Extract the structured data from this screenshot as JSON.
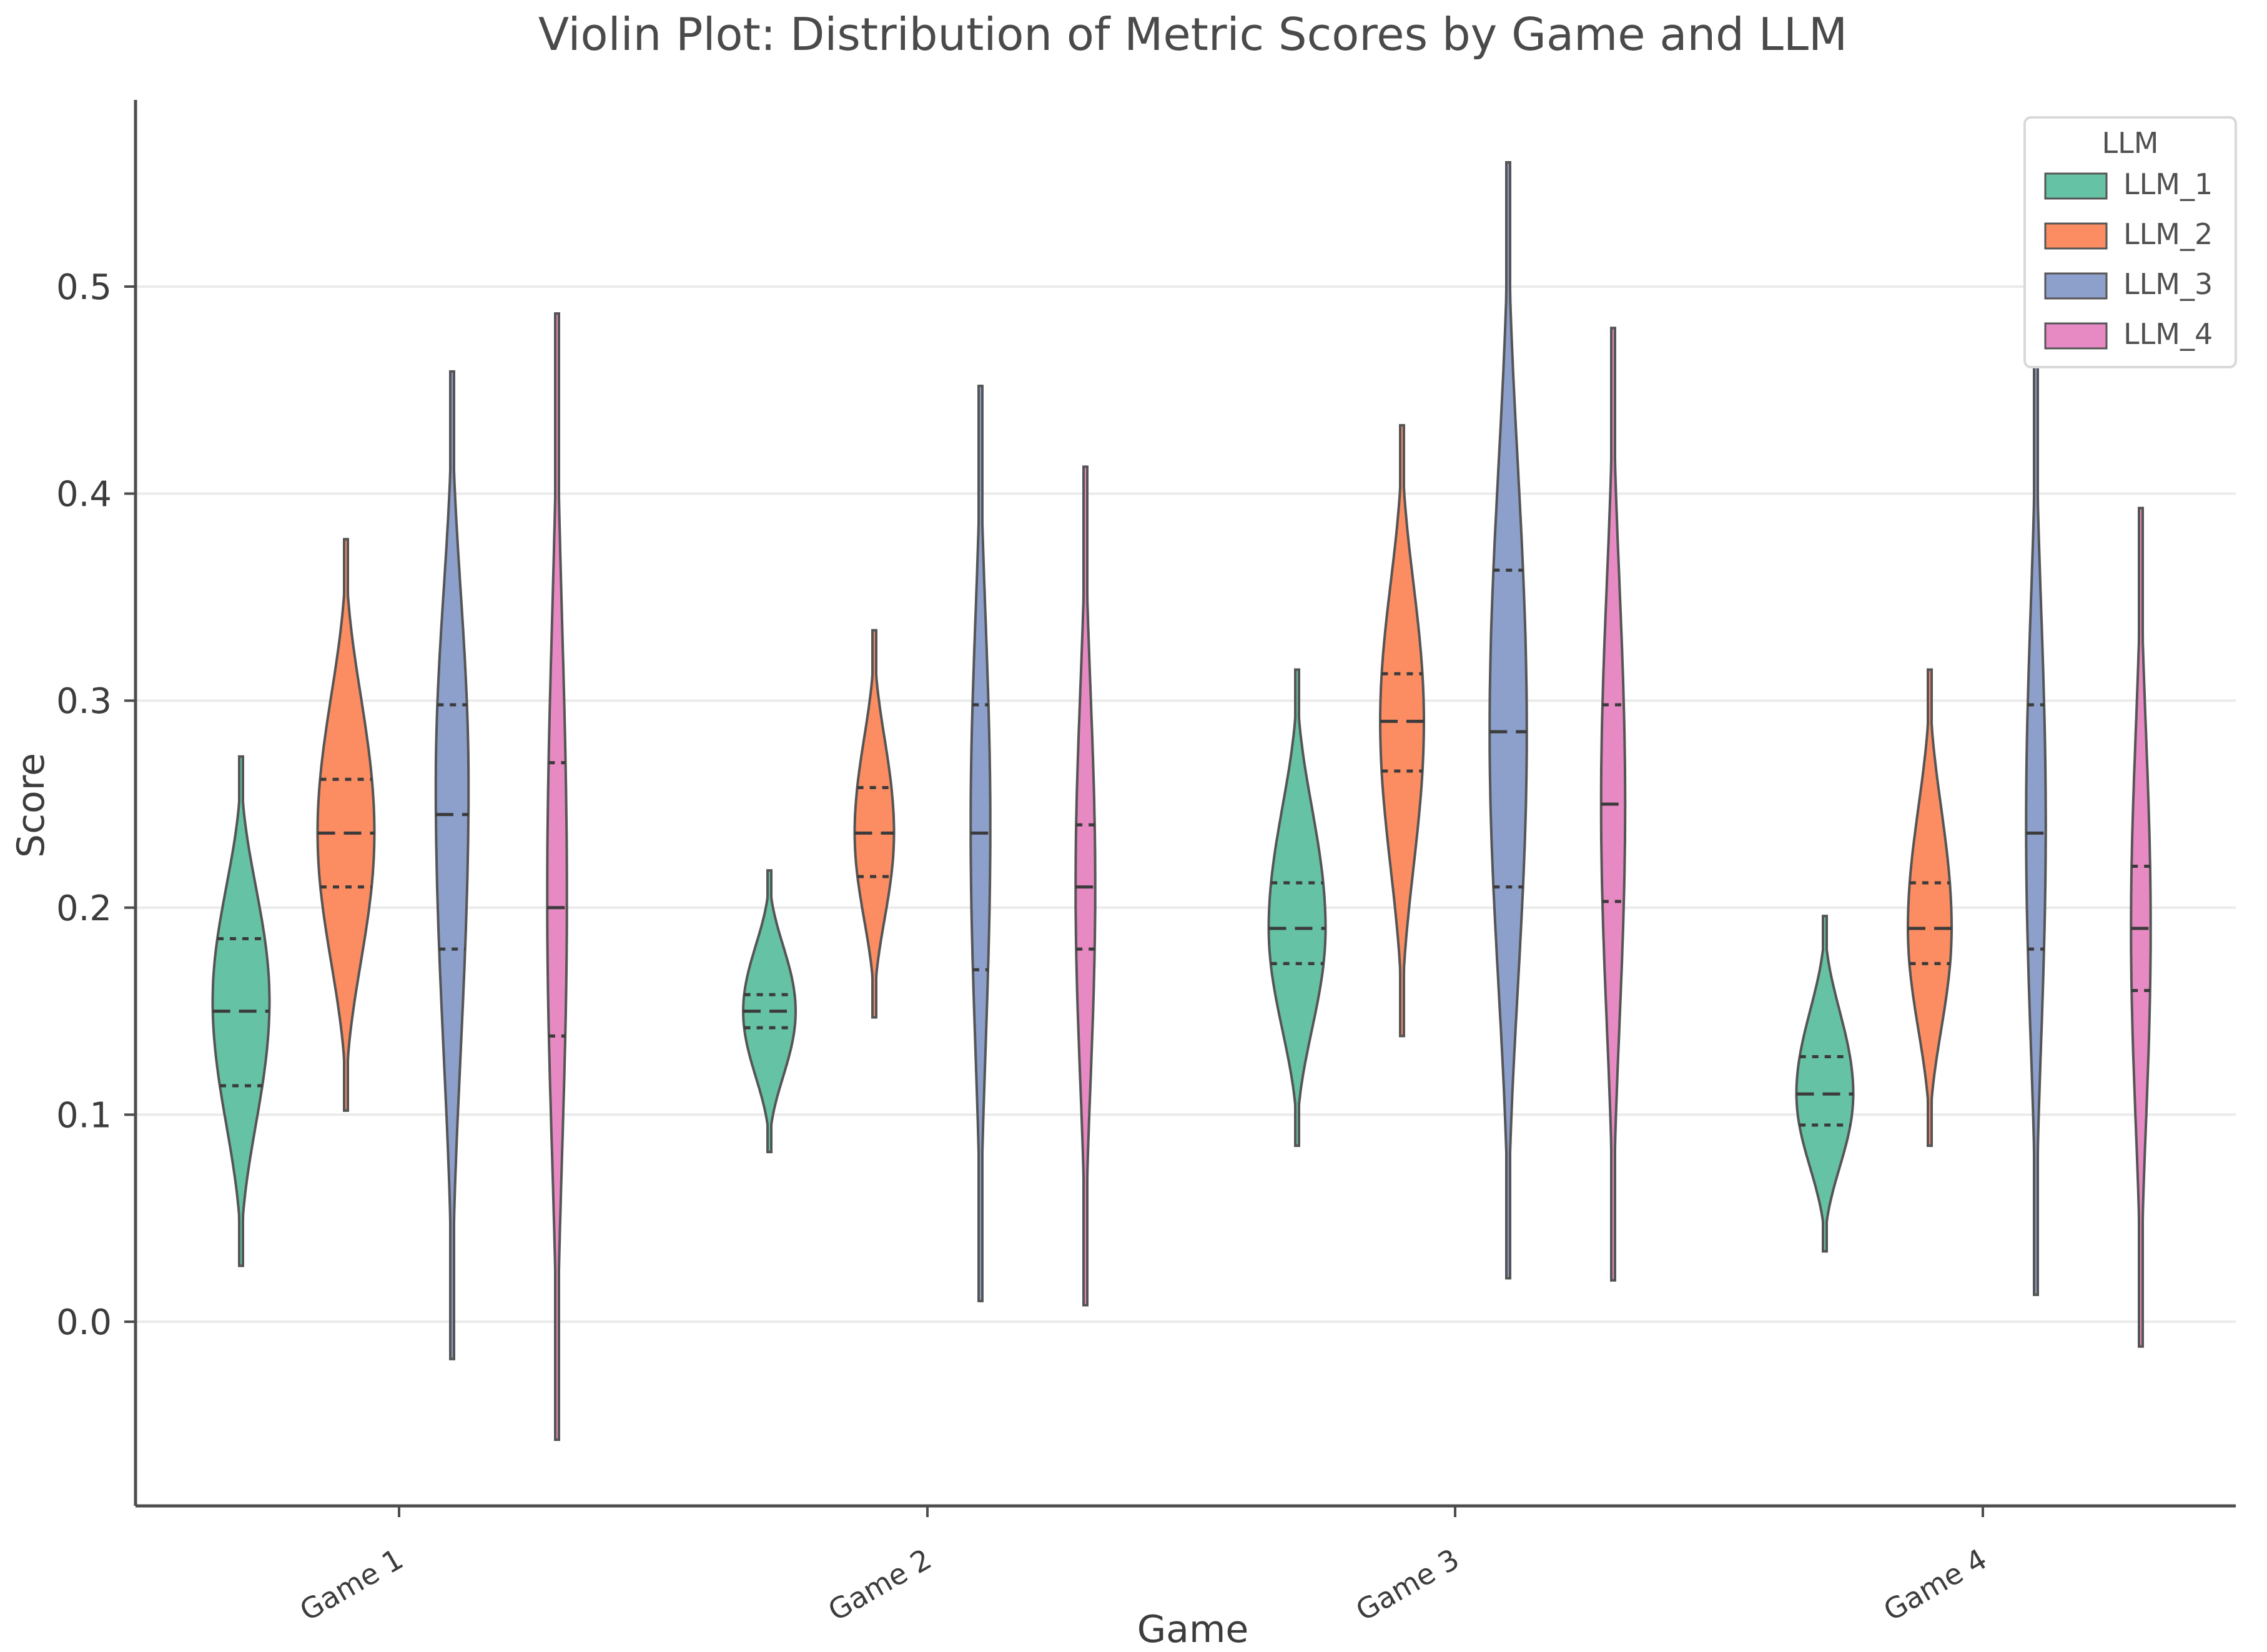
{
  "chart_data": {
    "type": "violin",
    "title": "Violin Plot: Distribution of Metric Scores by Game and LLM",
    "xlabel": "Game",
    "ylabel": "Score",
    "ylim": [
      -0.085,
      0.59
    ],
    "yticks": [
      0.0,
      0.1,
      0.2,
      0.3,
      0.4,
      0.5
    ],
    "ytick_labels": [
      "0.0",
      "0.1",
      "0.2",
      "0.3",
      "0.4",
      "0.5"
    ],
    "grid": "horizontal",
    "categories": [
      "Game 1",
      "Game 2",
      "Game 3",
      "Game 4"
    ],
    "legend": {
      "title": "LLM",
      "position": "top-right"
    },
    "series": [
      {
        "name": "LLM_1",
        "color": "#66c2a5",
        "violins": [
          {
            "min": 0.027,
            "max": 0.273,
            "q1": 0.114,
            "median": 0.15,
            "q3": 0.185,
            "peak": 0.155,
            "halfwidth": 0.13
          },
          {
            "min": 0.082,
            "max": 0.218,
            "q1": 0.142,
            "median": 0.15,
            "q3": 0.158,
            "peak": 0.15,
            "halfwidth": 0.12
          },
          {
            "min": 0.085,
            "max": 0.315,
            "q1": 0.173,
            "median": 0.19,
            "q3": 0.212,
            "peak": 0.19,
            "halfwidth": 0.13
          },
          {
            "min": 0.034,
            "max": 0.196,
            "q1": 0.095,
            "median": 0.11,
            "q3": 0.128,
            "peak": 0.11,
            "halfwidth": 0.13
          }
        ]
      },
      {
        "name": "LLM_2",
        "color": "#fc8d62",
        "violins": [
          {
            "min": 0.102,
            "max": 0.378,
            "q1": 0.21,
            "median": 0.236,
            "q3": 0.262,
            "peak": 0.236,
            "halfwidth": 0.13
          },
          {
            "min": 0.147,
            "max": 0.334,
            "q1": 0.215,
            "median": 0.236,
            "q3": 0.258,
            "peak": 0.236,
            "halfwidth": 0.09
          },
          {
            "min": 0.138,
            "max": 0.433,
            "q1": 0.266,
            "median": 0.29,
            "q3": 0.313,
            "peak": 0.29,
            "halfwidth": 0.1
          },
          {
            "min": 0.085,
            "max": 0.315,
            "q1": 0.173,
            "median": 0.19,
            "q3": 0.212,
            "peak": 0.19,
            "halfwidth": 0.1
          }
        ]
      },
      {
        "name": "LLM_3",
        "color": "#8da0cb",
        "violins": [
          {
            "min": -0.018,
            "max": 0.459,
            "q1": 0.18,
            "median": 0.245,
            "q3": 0.298,
            "peak": 0.26,
            "halfwidth": 0.075
          },
          {
            "min": 0.01,
            "max": 0.452,
            "q1": 0.17,
            "median": 0.236,
            "q3": 0.298,
            "peak": 0.24,
            "halfwidth": 0.045
          },
          {
            "min": 0.021,
            "max": 0.56,
            "q1": 0.21,
            "median": 0.285,
            "q3": 0.363,
            "peak": 0.285,
            "halfwidth": 0.085
          },
          {
            "min": 0.013,
            "max": 0.467,
            "q1": 0.18,
            "median": 0.236,
            "q3": 0.298,
            "peak": 0.24,
            "halfwidth": 0.045
          }
        ]
      },
      {
        "name": "LLM_4",
        "color": "#e78ac3",
        "violins": [
          {
            "min": -0.057,
            "max": 0.487,
            "q1": 0.138,
            "median": 0.2,
            "q3": 0.27,
            "peak": 0.205,
            "halfwidth": 0.045
          },
          {
            "min": 0.008,
            "max": 0.413,
            "q1": 0.18,
            "median": 0.21,
            "q3": 0.24,
            "peak": 0.21,
            "halfwidth": 0.045
          },
          {
            "min": 0.02,
            "max": 0.48,
            "q1": 0.203,
            "median": 0.25,
            "q3": 0.298,
            "peak": 0.25,
            "halfwidth": 0.055
          },
          {
            "min": -0.012,
            "max": 0.393,
            "q1": 0.16,
            "median": 0.19,
            "q3": 0.22,
            "peak": 0.19,
            "halfwidth": 0.045
          }
        ]
      }
    ]
  }
}
